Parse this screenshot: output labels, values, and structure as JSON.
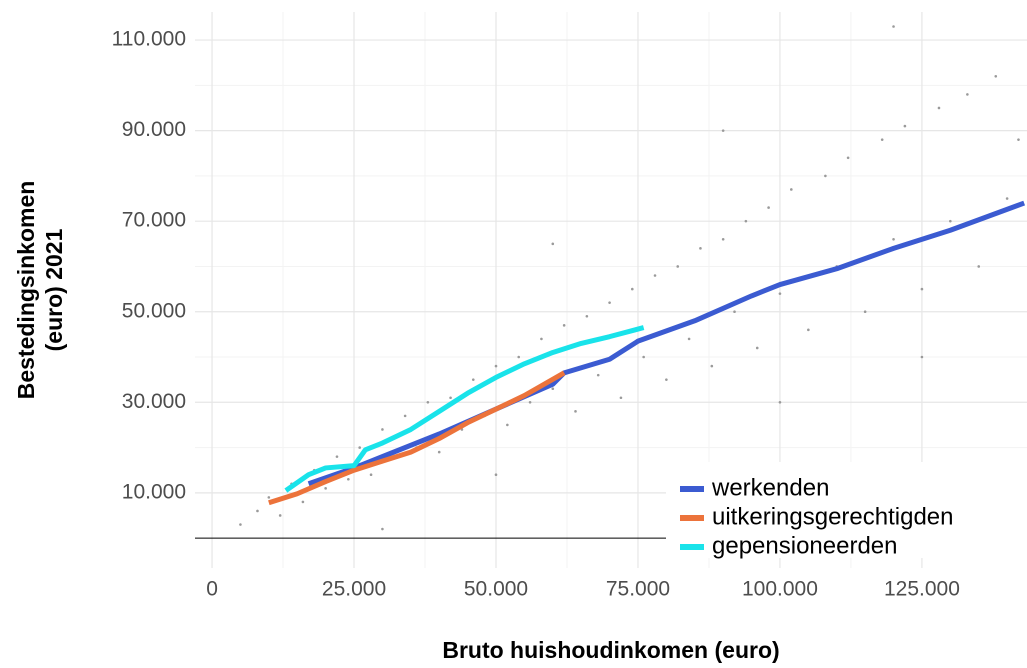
{
  "chart_data": {
    "type": "scatter",
    "x_label": "Bruto huishoudinkomen (euro)",
    "y_label": [
      "Bestedingsinkomen",
      "(euro) 2021"
    ],
    "xlim": [
      -3000,
      143500
    ],
    "ylim": [
      -6600,
      116200
    ],
    "xticks": [
      0,
      {
        "value": 25000,
        "label": "25.000"
      },
      {
        "value": 50000,
        "label": "50.000"
      },
      {
        "value": 75000,
        "label": "75.000"
      },
      {
        "value": 100000,
        "label": "100.000"
      },
      {
        "value": 125000,
        "label": "125.000"
      }
    ],
    "yticks": [
      {
        "value": 10000,
        "label": "10.000"
      },
      {
        "value": 30000,
        "label": "30.000"
      },
      {
        "value": 50000,
        "label": "50.000"
      },
      {
        "value": 70000,
        "label": "70.000"
      },
      {
        "value": 90000,
        "label": "90.000"
      },
      {
        "value": 110000,
        "label": "110.000"
      }
    ],
    "hline": 0,
    "grid": true,
    "legend": "bottom-right",
    "points": {
      "color": "#9a9a9a",
      "x": [
        5000,
        8000,
        10000,
        12000,
        14000,
        16000,
        18000,
        20000,
        22000,
        24000,
        26000,
        28000,
        30000,
        32000,
        34000,
        36000,
        38000,
        40000,
        42000,
        44000,
        46000,
        48000,
        50000,
        52000,
        54000,
        56000,
        58000,
        60000,
        62000,
        64000,
        66000,
        68000,
        70000,
        72000,
        74000,
        76000,
        78000,
        80000,
        82000,
        84000,
        86000,
        88000,
        90000,
        92000,
        94000,
        96000,
        98000,
        100000,
        102000,
        105000,
        108000,
        110000,
        112000,
        115000,
        118000,
        120000,
        122000,
        125000,
        128000,
        130000,
        133000,
        135000,
        138000,
        140000,
        142000,
        60000,
        120000,
        30000,
        50000,
        100000,
        125000,
        90000
      ],
      "y": [
        3000,
        6000,
        9000,
        5000,
        12000,
        8000,
        15000,
        11000,
        18000,
        13000,
        20000,
        14000,
        24000,
        18000,
        27000,
        20000,
        30000,
        19000,
        31000,
        24000,
        35000,
        27000,
        38000,
        25000,
        40000,
        30000,
        44000,
        33000,
        47000,
        28000,
        49000,
        36000,
        52000,
        31000,
        55000,
        40000,
        58000,
        35000,
        60000,
        44000,
        64000,
        38000,
        66000,
        50000,
        70000,
        42000,
        73000,
        54000,
        77000,
        46000,
        80000,
        60000,
        84000,
        50000,
        88000,
        66000,
        91000,
        55000,
        95000,
        70000,
        98000,
        60000,
        102000,
        75000,
        88000,
        65000,
        113000,
        2000,
        14000,
        30000,
        40000,
        90000
      ]
    },
    "series": [
      {
        "name": "werkenden",
        "color": "#3b5bd1",
        "x": [
          17000,
          25000,
          30000,
          40000,
          50000,
          60000,
          62000,
          70000,
          75000,
          85000,
          95000,
          100000,
          110000,
          120000,
          130000,
          143000
        ],
        "values": [
          12000,
          15500,
          18000,
          23000,
          28500,
          34000,
          36500,
          39500,
          43500,
          48000,
          53500,
          56000,
          59500,
          64000,
          68000,
          74000
        ]
      },
      {
        "name": "uitkeringsgerechtigden",
        "color": "#ec733b",
        "x": [
          10000,
          15000,
          20000,
          25000,
          30000,
          35000,
          40000,
          45000,
          50000,
          55000,
          62000
        ],
        "values": [
          7800,
          9800,
          12500,
          15000,
          17000,
          19000,
          22000,
          25500,
          28500,
          31500,
          36500
        ]
      },
      {
        "name": "gepensioneerden",
        "color": "#19e3ea",
        "x": [
          13000,
          17000,
          20000,
          25000,
          27000,
          30000,
          35000,
          40000,
          45000,
          50000,
          55000,
          60000,
          65000,
          70000,
          76000
        ],
        "values": [
          10500,
          14000,
          15500,
          16000,
          19500,
          21000,
          24000,
          28000,
          32000,
          35500,
          38500,
          41000,
          43000,
          44500,
          46500
        ]
      }
    ]
  }
}
